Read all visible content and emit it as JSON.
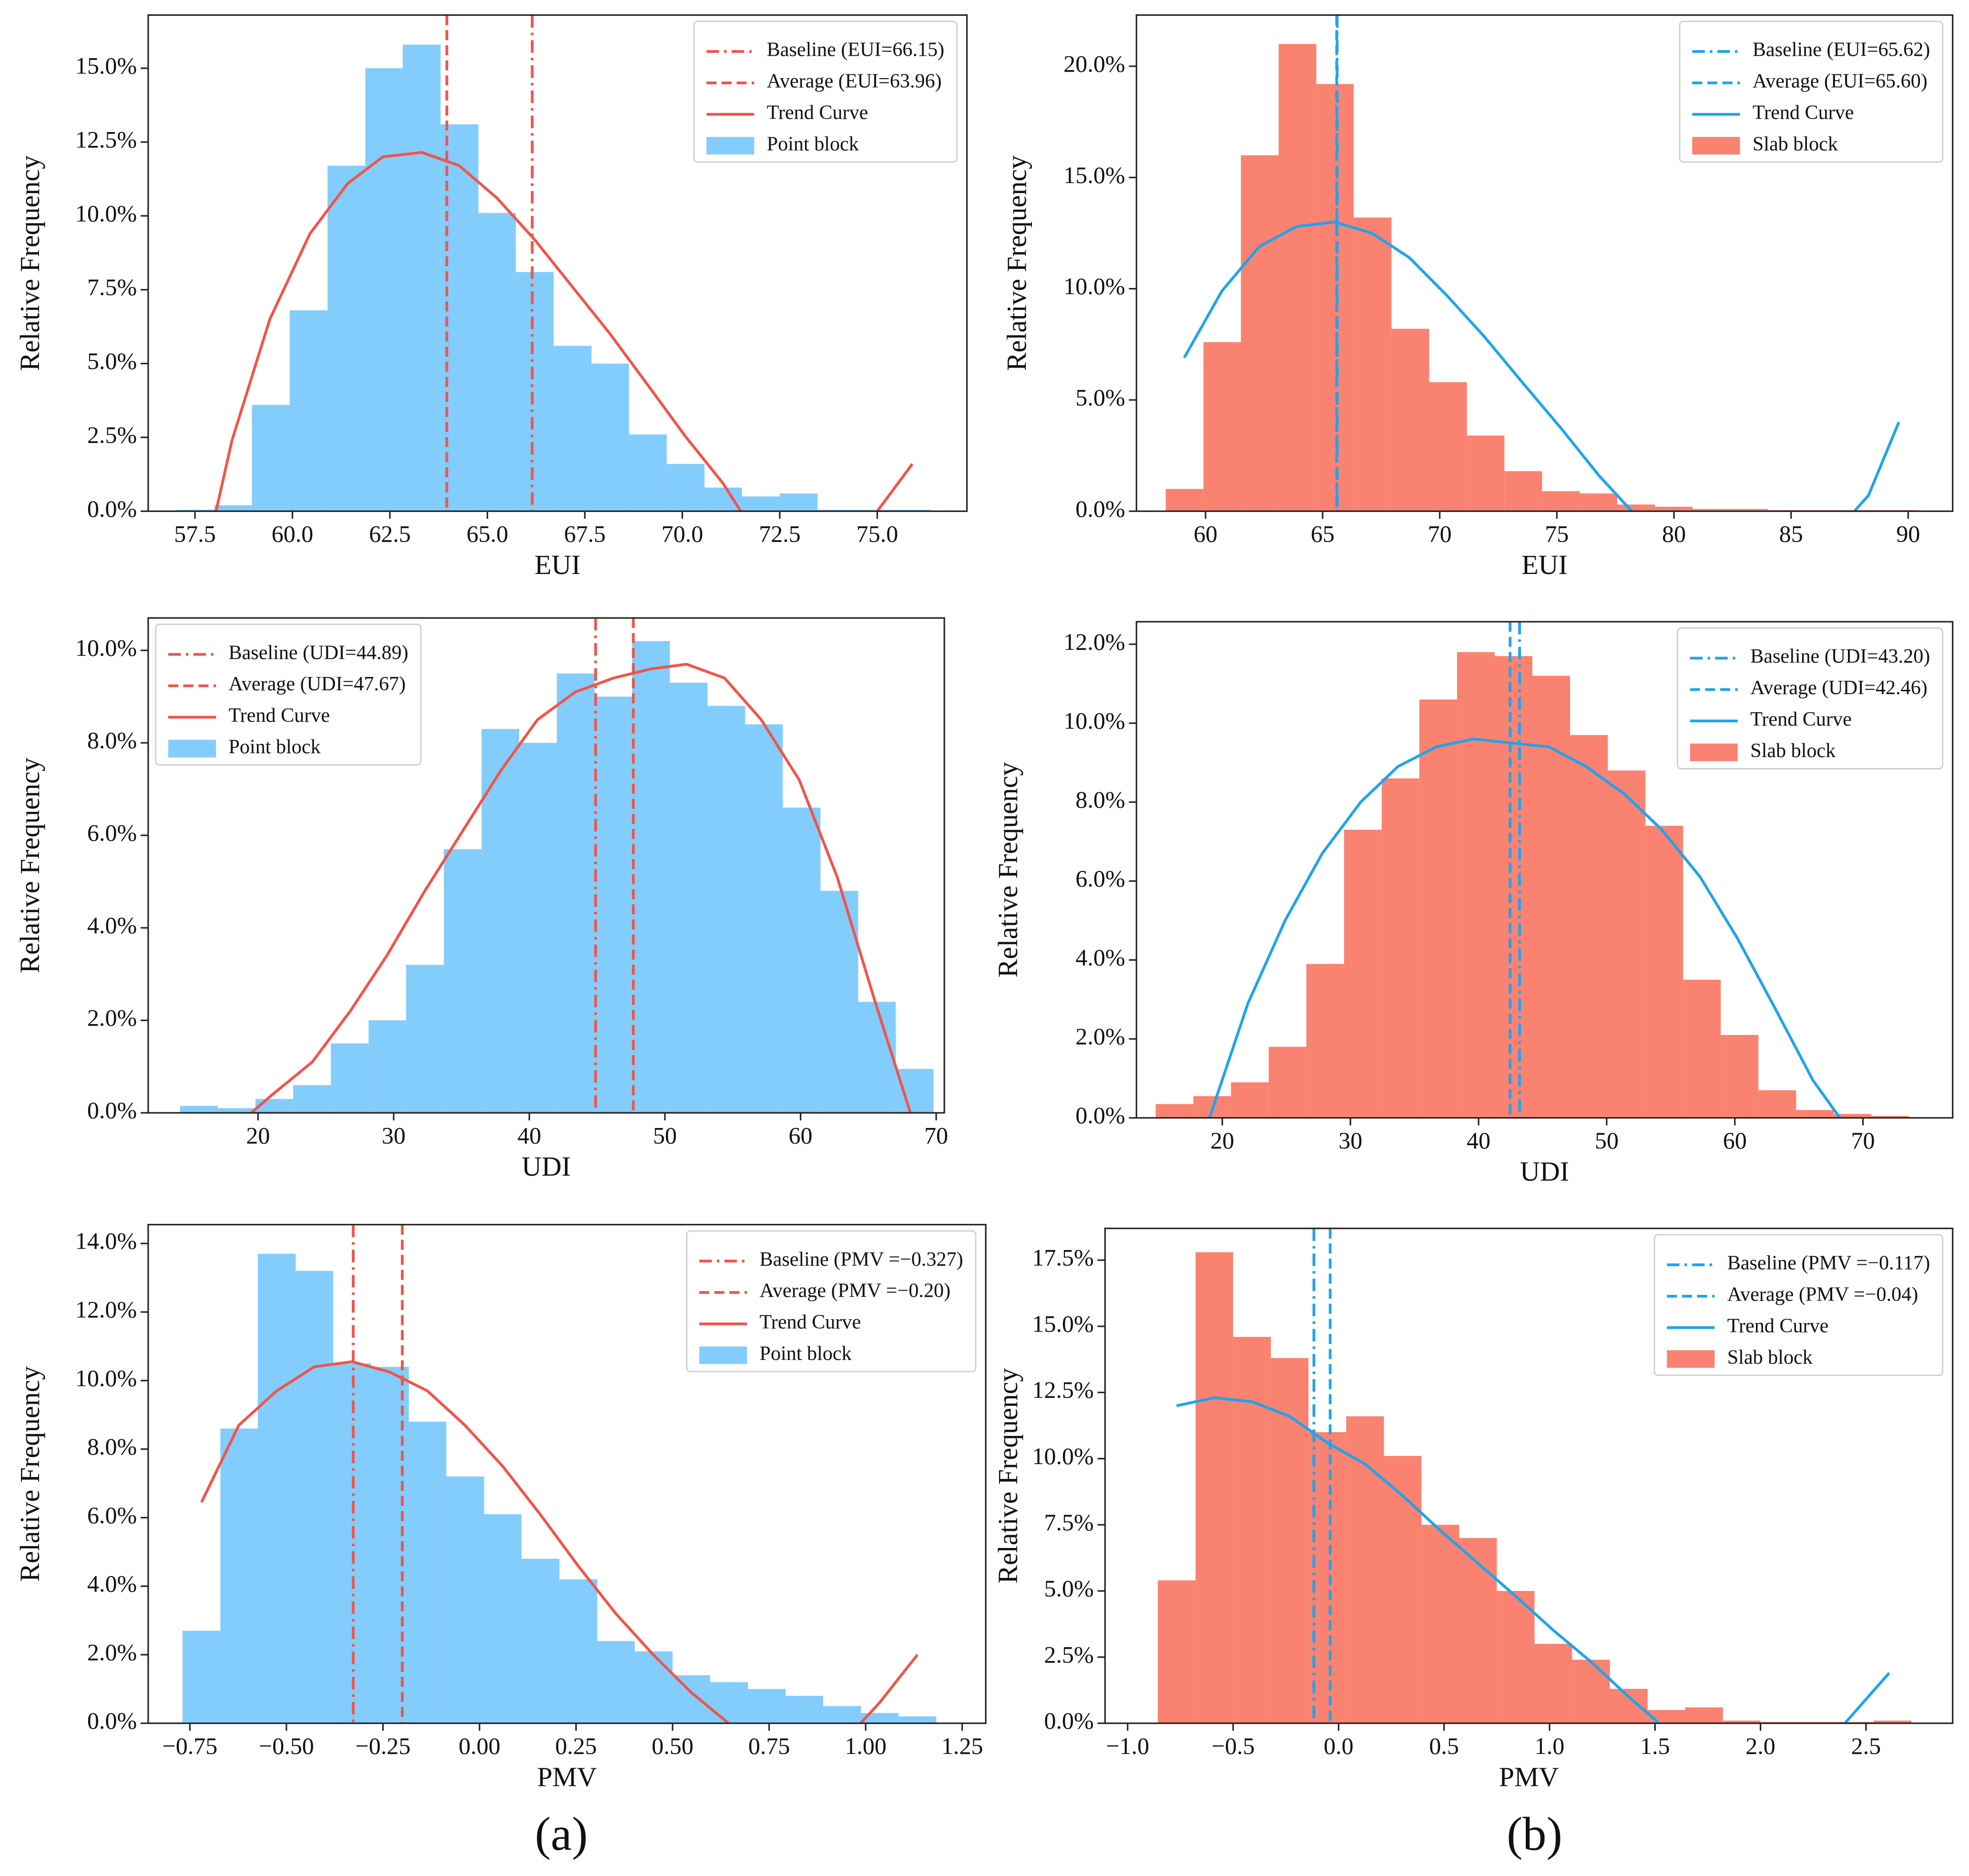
{
  "chart_data": [
    {
      "type": "histogram",
      "xlabel": "EUI",
      "ylabel": "Relative Frequency",
      "name": "Point block",
      "color": "#82cdfc",
      "line_color": "#f25449",
      "legend": "upper right",
      "bins": [
        57.03,
        58.0,
        58.96,
        59.93,
        60.9,
        61.87,
        62.83,
        63.8,
        64.77,
        65.73,
        66.7,
        67.67,
        68.63,
        69.6,
        70.57,
        71.53,
        72.5,
        73.47,
        74.44,
        75.4,
        76.37
      ],
      "counts": [
        0.05,
        0.2,
        3.6,
        6.8,
        11.7,
        15.0,
        15.8,
        13.1,
        10.1,
        8.1,
        5.6,
        5.0,
        2.6,
        1.6,
        0.8,
        0.5,
        0.6,
        0.05,
        0.05,
        0.05
      ],
      "trend": {
        "name": "Trend Curve",
        "x": [
          58.04,
          58.45,
          59.42,
          60.45,
          61.42,
          62.32,
          63.32,
          64.28,
          65.25,
          66.21,
          67.18,
          68.15,
          69.1,
          70.07,
          71.04,
          71.5,
          null,
          75.0,
          75.9
        ],
        "values": [
          0,
          2.4,
          6.5,
          9.4,
          11.1,
          12.0,
          12.15,
          11.7,
          10.6,
          9.2,
          7.6,
          6.0,
          4.3,
          2.55,
          0.95,
          0,
          null,
          0,
          1.6
        ]
      },
      "lines": [
        {
          "name": "Baseline (EUI=66.15)",
          "x": 66.15,
          "style": "dashdot"
        },
        {
          "name": "Average (EUI=63.96)",
          "x": 63.96,
          "style": "dashed"
        }
      ],
      "xlim": [
        56.3,
        77.3
      ],
      "ylim": [
        0,
        16.8
      ],
      "xticks": [
        57.5,
        {
          "value": 60,
          "label": "60.0"
        },
        62.5,
        {
          "value": 65,
          "label": "65.0"
        },
        67.5,
        {
          "value": 70,
          "label": "70.0"
        },
        72.5,
        {
          "value": 75,
          "label": "75.0"
        }
      ],
      "yticks": [
        {
          "value": 0,
          "label": "0.0%"
        },
        {
          "value": 2.5,
          "label": "2.5%"
        },
        {
          "value": 5,
          "label": "5.0%"
        },
        {
          "value": 7.5,
          "label": "7.5%"
        },
        {
          "value": 10,
          "label": "10.0%"
        },
        {
          "value": 12.5,
          "label": "12.5%"
        },
        {
          "value": 15,
          "label": "15.0%"
        }
      ]
    },
    {
      "type": "histogram",
      "xlabel": "EUI",
      "ylabel": "Relative Frequency",
      "name": "Slab block",
      "color": "#fa8270",
      "line_color": "#1ea4ee",
      "legend": "upper right",
      "bins": [
        58.3,
        59.91,
        61.51,
        63.12,
        64.73,
        66.33,
        67.94,
        69.55,
        71.16,
        72.76,
        74.37,
        75.98,
        77.58,
        79.19,
        80.8,
        82.41,
        84.01,
        85.62,
        87.23,
        88.83,
        90.44
      ],
      "counts": [
        1.0,
        7.6,
        16.0,
        21.0,
        19.2,
        13.2,
        8.2,
        5.8,
        3.4,
        1.8,
        0.9,
        0.8,
        0.3,
        0.2,
        0.1,
        0.1,
        0.05,
        0.05,
        0.05,
        0.05
      ],
      "trend": {
        "name": "Trend Curve",
        "x": [
          59.09,
          60.7,
          62.3,
          63.9,
          65.5,
          67.1,
          68.7,
          70.3,
          71.9,
          73.55,
          75.2,
          76.8,
          78.2,
          null,
          87.7,
          88.3,
          89.6
        ],
        "values": [
          6.9,
          9.9,
          11.9,
          12.8,
          13.0,
          12.5,
          11.4,
          9.7,
          7.85,
          5.76,
          3.7,
          1.6,
          0,
          null,
          0,
          0.7,
          4.0
        ]
      },
      "lines": [
        {
          "name": "Baseline (EUI=65.62)",
          "x": 65.62,
          "style": "dashdot"
        },
        {
          "name": "Average (EUI=65.60)",
          "x": 65.6,
          "style": "dashed"
        }
      ],
      "xlim": [
        57.05,
        91.9
      ],
      "ylim": [
        0,
        22.3
      ],
      "xticks": [
        60,
        65,
        70,
        75,
        80,
        85,
        90
      ],
      "yticks": [
        {
          "value": 0,
          "label": "0.0%"
        },
        {
          "value": 5,
          "label": "5.0%"
        },
        {
          "value": 10,
          "label": "10.0%"
        },
        {
          "value": 15,
          "label": "15.0%"
        },
        {
          "value": 20,
          "label": "20.0%"
        }
      ]
    },
    {
      "type": "histogram",
      "xlabel": "UDI",
      "ylabel": "Relative Frequency",
      "name": "Point block",
      "color": "#82cdfc",
      "line_color": "#f25449",
      "legend": "upper left",
      "bins": [
        14.26,
        17.04,
        19.81,
        22.59,
        25.37,
        28.15,
        30.92,
        33.7,
        36.48,
        39.25,
        42.03,
        44.81,
        47.58,
        50.36,
        53.14,
        55.92,
        58.69,
        61.47,
        64.25,
        67.02,
        69.8
      ],
      "counts": [
        0.15,
        0.1,
        0.3,
        0.6,
        1.5,
        2.0,
        3.2,
        5.7,
        8.3,
        8.0,
        9.5,
        9.0,
        10.2,
        9.3,
        8.8,
        8.4,
        6.6,
        4.8,
        2.4,
        0.95
      ],
      "trend": {
        "name": "Trend Curve",
        "x": [
          19.5,
          21.2,
          24.0,
          26.8,
          29.5,
          32.3,
          35.1,
          37.9,
          40.6,
          43.4,
          46.2,
          49.0,
          51.6,
          54.4,
          57.1,
          59.9,
          62.7,
          65.5,
          68.1
        ],
        "values": [
          0,
          0.43,
          1.1,
          2.2,
          3.4,
          4.8,
          6.1,
          7.4,
          8.5,
          9.1,
          9.4,
          9.6,
          9.7,
          9.4,
          8.5,
          7.2,
          5.1,
          2.4,
          0
        ]
      },
      "lines": [
        {
          "name": "Baseline (UDI=44.89)",
          "x": 44.89,
          "style": "dashdot"
        },
        {
          "name": "Average (UDI=47.67)",
          "x": 47.67,
          "style": "dashed"
        }
      ],
      "xlim": [
        11.9,
        70.6
      ],
      "ylim": [
        0,
        10.7
      ],
      "xticks": [
        20,
        30,
        40,
        50,
        60,
        70
      ],
      "yticks": [
        {
          "value": 0,
          "label": "0.0%"
        },
        {
          "value": 2,
          "label": "2.0%"
        },
        {
          "value": 4,
          "label": "4.0%"
        },
        {
          "value": 6,
          "label": "6.0%"
        },
        {
          "value": 8,
          "label": "8.0%"
        },
        {
          "value": 10,
          "label": "10.0%"
        }
      ]
    },
    {
      "type": "histogram",
      "xlabel": "UDI",
      "ylabel": "Relative Frequency",
      "name": "Slab block",
      "color": "#fa8270",
      "line_color": "#1ea4ee",
      "legend": "upper right",
      "bins": [
        14.8,
        17.74,
        20.68,
        23.62,
        26.56,
        29.5,
        32.44,
        35.38,
        38.32,
        41.26,
        44.2,
        47.14,
        50.08,
        53.02,
        55.96,
        58.9,
        61.84,
        64.78,
        67.72,
        70.66,
        73.6
      ],
      "counts": [
        0.35,
        0.55,
        0.9,
        1.8,
        3.9,
        7.3,
        8.6,
        10.6,
        11.8,
        11.7,
        11.2,
        9.7,
        8.8,
        7.4,
        3.5,
        2.1,
        0.7,
        0.2,
        0.1,
        0.05
      ],
      "trend": {
        "name": "Trend Curve",
        "x": [
          19.0,
          22.0,
          24.9,
          27.8,
          30.8,
          33.7,
          36.7,
          39.6,
          42.5,
          45.5,
          48.4,
          51.4,
          54.3,
          57.3,
          60.2,
          63.1,
          66.1,
          68.2
        ],
        "values": [
          0,
          2.9,
          5.0,
          6.7,
          8.0,
          8.9,
          9.4,
          9.6,
          9.5,
          9.4,
          8.9,
          8.2,
          7.3,
          6.1,
          4.55,
          2.8,
          0.95,
          0
        ]
      },
      "lines": [
        {
          "name": "Baseline (UDI=43.20)",
          "x": 43.2,
          "style": "dashdot"
        },
        {
          "name": "Average (UDI=42.46)",
          "x": 42.46,
          "style": "dashed"
        }
      ],
      "xlim": [
        13.3,
        77.0
      ],
      "ylim": [
        0,
        12.57
      ],
      "xticks": [
        20,
        30,
        40,
        50,
        60,
        70
      ],
      "yticks": [
        {
          "value": 0,
          "label": "0.0%"
        },
        {
          "value": 2,
          "label": "2.0%"
        },
        {
          "value": 4,
          "label": "4.0%"
        },
        {
          "value": 6,
          "label": "6.0%"
        },
        {
          "value": 8,
          "label": "8.0%"
        },
        {
          "value": 10,
          "label": "10.0%"
        },
        {
          "value": 12,
          "label": "12.0%"
        }
      ]
    },
    {
      "type": "histogram",
      "xlabel": "PMV",
      "ylabel": "Relative Frequency",
      "name": "Point block",
      "color": "#82cdfc",
      "line_color": "#f25449",
      "legend": "upper right",
      "bins": [
        -0.769,
        -0.671,
        -0.574,
        -0.476,
        -0.379,
        -0.281,
        -0.183,
        -0.086,
        0.012,
        0.109,
        0.207,
        0.305,
        0.402,
        0.5,
        0.597,
        0.695,
        0.793,
        0.89,
        0.988,
        1.085,
        1.183
      ],
      "counts": [
        2.7,
        8.6,
        13.7,
        13.2,
        10.5,
        10.4,
        8.8,
        7.2,
        6.1,
        4.8,
        4.2,
        2.4,
        2.1,
        1.4,
        1.2,
        1.0,
        0.8,
        0.5,
        0.3,
        0.2
      ],
      "trend": {
        "name": "Trend Curve",
        "x": [
          -0.72,
          -0.623,
          -0.525,
          -0.428,
          -0.33,
          -0.233,
          -0.135,
          -0.038,
          0.06,
          0.157,
          0.255,
          0.353,
          0.45,
          0.548,
          0.645,
          null,
          0.987,
          1.036,
          1.134
        ],
        "values": [
          6.45,
          8.7,
          9.7,
          10.4,
          10.55,
          10.25,
          9.7,
          8.7,
          7.5,
          6.1,
          4.6,
          3.2,
          2.0,
          0.9,
          0,
          null,
          0,
          0.6,
          2.0
        ]
      },
      "lines": [
        {
          "name": "Baseline (PMV =−0.327)",
          "x": -0.327,
          "style": "dashdot"
        },
        {
          "name": "Average (PMV =−0.20)",
          "x": -0.2,
          "style": "dashed"
        }
      ],
      "xlim": [
        -0.858,
        1.311
      ],
      "ylim": [
        0,
        14.55
      ],
      "xticks": [
        {
          "value": -0.75,
          "label": "−0.75"
        },
        {
          "value": -0.5,
          "label": "−0.50"
        },
        {
          "value": -0.25,
          "label": "−0.25"
        },
        {
          "value": 0,
          "label": "0.00"
        },
        0.25,
        {
          "value": 0.5,
          "label": "0.50"
        },
        0.75,
        {
          "value": 1,
          "label": "1.00"
        },
        1.25
      ],
      "yticks": [
        {
          "value": 0,
          "label": "0.0%"
        },
        {
          "value": 2,
          "label": "2.0%"
        },
        {
          "value": 4,
          "label": "4.0%"
        },
        {
          "value": 6,
          "label": "6.0%"
        },
        {
          "value": 8,
          "label": "8.0%"
        },
        {
          "value": 10,
          "label": "10.0%"
        },
        {
          "value": 12,
          "label": "12.0%"
        },
        {
          "value": 14,
          "label": "14.0%"
        }
      ]
    },
    {
      "type": "histogram",
      "xlabel": "PMV",
      "ylabel": "Relative Frequency",
      "name": "Slab block",
      "color": "#fa8270",
      "line_color": "#1ea4ee",
      "legend": "upper right",
      "bins": [
        -0.857,
        -0.678,
        -0.5,
        -0.321,
        -0.143,
        0.036,
        0.215,
        0.393,
        0.572,
        0.75,
        0.929,
        1.107,
        1.286,
        1.465,
        1.643,
        1.822,
        2.0,
        2.179,
        2.358,
        2.536,
        2.715
      ],
      "counts": [
        5.4,
        17.8,
        14.6,
        13.8,
        11.0,
        11.6,
        10.1,
        7.5,
        7.0,
        5.0,
        3.0,
        2.4,
        1.3,
        0.5,
        0.6,
        0.1,
        0.05,
        0.05,
        0.05,
        0.1
      ],
      "trend": {
        "name": "Trend Curve",
        "x": [
          -0.768,
          -0.589,
          -0.41,
          -0.232,
          -0.054,
          0.125,
          0.304,
          0.48,
          0.66,
          0.84,
          1.02,
          1.2,
          1.375,
          1.52,
          null,
          2.4,
          2.61
        ],
        "values": [
          12.0,
          12.3,
          12.15,
          11.6,
          10.6,
          9.8,
          8.6,
          7.3,
          6.05,
          4.8,
          3.5,
          2.3,
          1.0,
          0,
          null,
          0,
          1.9
        ]
      },
      "lines": [
        {
          "name": "Baseline (PMV =−0.117)",
          "x": -0.117,
          "style": "dashdot"
        },
        {
          "name": "Average (PMV =−0.04)",
          "x": -0.04,
          "style": "dashed"
        }
      ],
      "xlim": [
        -1.107,
        2.911
      ],
      "ylim": [
        0,
        18.7
      ],
      "xticks": [
        {
          "value": -1,
          "label": "−1.0"
        },
        {
          "value": -0.5,
          "label": "−0.5"
        },
        {
          "value": 0,
          "label": "0.0"
        },
        0.5,
        {
          "value": 1,
          "label": "1.0"
        },
        1.5,
        {
          "value": 2,
          "label": "2.0"
        },
        2.5
      ],
      "yticks": [
        {
          "value": 0,
          "label": "0.0%"
        },
        {
          "value": 2.5,
          "label": "2.5%"
        },
        {
          "value": 5,
          "label": "5.0%"
        },
        {
          "value": 7.5,
          "label": "7.5%"
        },
        {
          "value": 10,
          "label": "10.0%"
        },
        {
          "value": 12.5,
          "label": "12.5%"
        },
        {
          "value": 15,
          "label": "15.0%"
        },
        {
          "value": 17.5,
          "label": "17.5%"
        }
      ]
    }
  ],
  "captions": [
    "(a)",
    "(b)"
  ]
}
